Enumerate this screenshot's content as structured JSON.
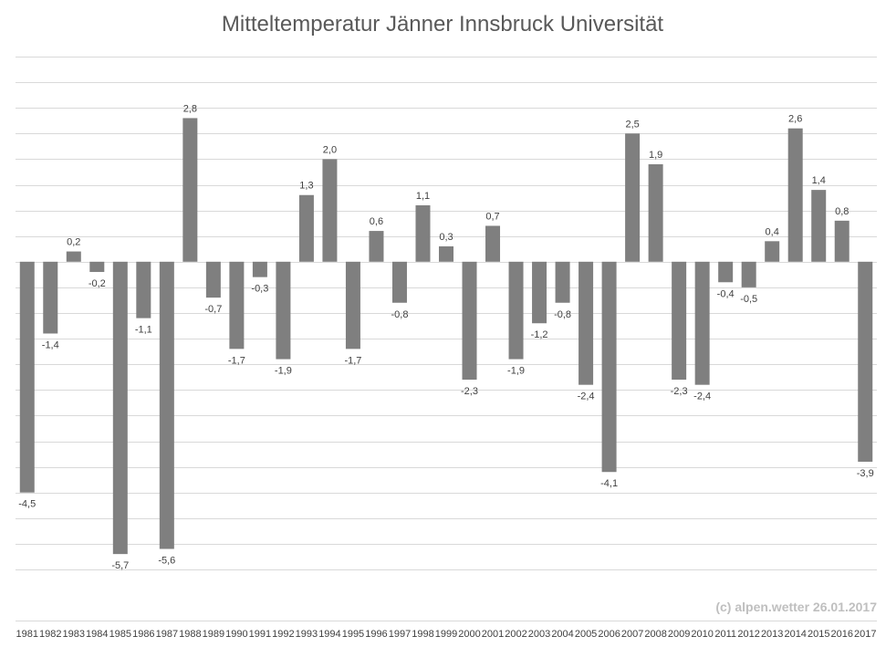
{
  "chart_data": {
    "type": "bar",
    "title": "Mitteltemperatur Jänner Innsbruck Universität",
    "xlabel": "",
    "ylabel": "",
    "ylim": [
      -6,
      4
    ],
    "grid": true,
    "legend": "none",
    "categories": [
      "1981",
      "1982",
      "1983",
      "1984",
      "1985",
      "1986",
      "1987",
      "1988",
      "1989",
      "1990",
      "1991",
      "1992",
      "1993",
      "1994",
      "1995",
      "1996",
      "1997",
      "1998",
      "1999",
      "2000",
      "2001",
      "2002",
      "2003",
      "2004",
      "2005",
      "2006",
      "2007",
      "2008",
      "2009",
      "2010",
      "2011",
      "2012",
      "2013",
      "2014",
      "2015",
      "2016",
      "2017"
    ],
    "values": [
      -4.5,
      -1.4,
      0.2,
      -0.2,
      -5.7,
      -1.1,
      -5.6,
      2.8,
      -0.7,
      -1.7,
      -0.3,
      -1.9,
      1.3,
      2.0,
      -1.7,
      0.6,
      -0.8,
      1.1,
      0.3,
      -2.3,
      0.7,
      -1.9,
      -1.2,
      -0.8,
      -2.4,
      -4.1,
      2.5,
      1.9,
      -2.3,
      -2.4,
      -0.4,
      -0.5,
      0.4,
      2.6,
      1.4,
      0.8,
      -3.9
    ],
    "value_labels": [
      "-4,5",
      "-1,4",
      "0,2",
      "-0,2",
      "-5,7",
      "-1,1",
      "-5,6",
      "2,8",
      "-0,7",
      "-1,7",
      "-0,3",
      "-1,9",
      "1,3",
      "2,0",
      "-1,7",
      "0,6",
      "-0,8",
      "1,1",
      "0,3",
      "-2,3",
      "0,7",
      "-1,9",
      "-1,2",
      "-0,8",
      "-2,4",
      "-4,1",
      "2,5",
      "1,9",
      "-2,3",
      "-2,4",
      "-0,4",
      "-0,5",
      "0,4",
      "2,6",
      "1,4",
      "0,8",
      "-3,9"
    ],
    "annotation": "(c) alpen.wetter 26.01.2017",
    "colors": {
      "bar": "#7f7f7f",
      "grid": "#d9d9d9",
      "text": "#404040",
      "title": "#595959",
      "annotation": "#bfbfbf"
    }
  }
}
